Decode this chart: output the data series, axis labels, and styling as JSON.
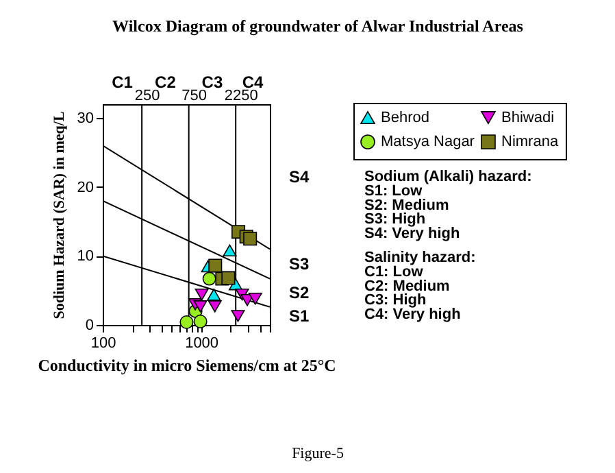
{
  "chart_data": {
    "type": "scatter",
    "title": "Wilcox Diagram of groundwater of Alwar Industrial Areas",
    "xlabel": "Conductivity in micro Siemens/cm at 25°C",
    "ylabel": "Sodium Hazard (SAR) in meq/L",
    "log": "x",
    "xlim": [
      100,
      5000
    ],
    "ylim": [
      0,
      32
    ],
    "xticks": [
      100,
      {
        "value": 200,
        "label": null
      },
      {
        "value": 300,
        "label": null
      },
      {
        "value": 400,
        "label": null
      },
      {
        "value": 500,
        "label": null
      },
      {
        "value": 600,
        "label": null
      },
      {
        "value": 700,
        "label": null
      },
      {
        "value": 800,
        "label": null
      },
      {
        "value": 900,
        "label": null
      },
      1000,
      {
        "value": 2000,
        "label": null
      },
      {
        "value": 3000,
        "label": null
      },
      {
        "value": 4000,
        "label": null
      },
      {
        "value": 5000,
        "label": null
      }
    ],
    "yticks": [
      0,
      10,
      20,
      30
    ],
    "legend": "right",
    "grid": false,
    "series": [
      {
        "name": "Behrod",
        "color": "#00e5ee",
        "marker": "triangle",
        "x": [
          1175,
          1955,
          1349,
          2244
        ],
        "values": [
          8.5,
          10.8,
          4.4,
          5.9
        ]
      },
      {
        "name": "Matsya Nagar",
        "color": "#99ee22",
        "marker": "circle",
        "x": [
          1213,
          880,
          712,
          984
        ],
        "values": [
          6.7,
          2.0,
          0.4,
          0.5
        ]
      },
      {
        "name": "Bhiwadi",
        "color": "#dd00dd",
        "marker": "triangle-down",
        "x": [
          871,
          984,
          1016,
          1380,
          2371,
          2617,
          2953,
          3555
        ],
        "values": [
          3.0,
          2.7,
          4.4,
          2.7,
          1.3,
          4.4,
          3.6,
          3.8
        ]
      },
      {
        "name": "Nimrana",
        "color": "#77771a",
        "marker": "square",
        "x": [
          1393,
          1637,
          1892,
          2393,
          2884,
          3150
        ],
        "values": [
          8.6,
          6.7,
          6.8,
          13.5,
          12.8,
          12.5
        ]
      },
      {
        "type": "line",
        "color": "#000000",
        "x": [
          100,
          5000
        ],
        "values": [
          26,
          11.0
        ]
      },
      {
        "type": "line",
        "color": "#000000",
        "x": [
          100,
          5000
        ],
        "values": [
          18,
          6.7
        ]
      },
      {
        "type": "line",
        "color": "#000000",
        "x": [
          100,
          5000
        ],
        "values": [
          10,
          2.6
        ]
      }
    ],
    "ref_lines": [
      {
        "axis": "x",
        "value": 250,
        "label": "250"
      },
      {
        "axis": "x",
        "value": 750,
        "label": "750"
      },
      {
        "axis": "x",
        "value": 2250,
        "label": "2250"
      }
    ],
    "annotations": [
      "C1",
      "C2",
      "C3",
      "C4",
      "S4",
      "S3",
      "S2",
      "S1",
      "Sodium (Alkali) hazard:",
      "S1: Low",
      "S2: Medium",
      "S3: High",
      "S4: Very high",
      "Salinity hazard:",
      "C1: Low",
      "C2: Medium",
      "C3: High",
      "C4: Very high",
      "Figure-5"
    ]
  }
}
